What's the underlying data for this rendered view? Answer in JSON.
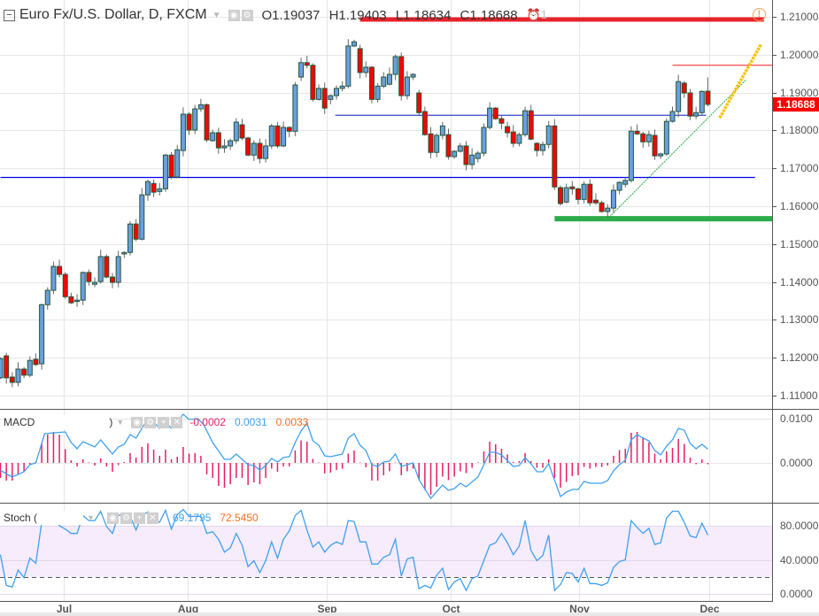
{
  "header": {
    "title": "Euro Fx/U.S. Dollar, D, FXCM",
    "open": "O1.19037",
    "high": "H1.19403",
    "low": "L1.18634",
    "close": "C1.18688",
    "alarm_count": "1",
    "icons": [
      "collapse-icon",
      "dropdown-icon",
      "eye-icon",
      "gear-icon",
      "alarm-icon",
      "warning-icon"
    ]
  },
  "price_tag": "1.18688",
  "macd_legend": {
    "label": "MACD",
    "paren": ")",
    "histogram": "-0.0002",
    "macd": "0.0031",
    "signal": "0.0033"
  },
  "stoch_legend": {
    "label": "Stoch (",
    "k": "69.1795",
    "d": "72.5450"
  },
  "colors": {
    "up": "#6a9fe0",
    "down": "#ff0000",
    "outline": "#24543a",
    "macd_line": "#3fa0f0",
    "histogram": "#e91e63",
    "signal_text": "#ff6d1a",
    "stoch_band": "#f6ecfc"
  },
  "chart_data": {
    "type": "candlestick",
    "title": "Euro Fx/U.S. Dollar, D, FXCM",
    "ylim": [
      1.1067,
      1.2144
    ],
    "price_ticks": [
      "1.21000",
      "1.20000",
      "1.19000",
      "1.18000",
      "1.17000",
      "1.16000",
      "1.15000",
      "1.14000",
      "1.13000",
      "1.12000",
      "1.11000"
    ],
    "x_ticks": [
      {
        "label": "Jul",
        "bar": 10.8
      },
      {
        "label": "Aug",
        "bar": 31.7
      },
      {
        "label": "Sep",
        "bar": 55.4
      },
      {
        "label": "Oct",
        "bar": 76.3
      },
      {
        "label": "Nov",
        "bar": 98.2
      },
      {
        "label": "Dec",
        "bar": 120.2
      }
    ],
    "candles_oc": [
      [
        1.1147,
        1.1198
      ],
      [
        1.1205,
        1.1147
      ],
      [
        1.1149,
        1.1135
      ],
      [
        1.1135,
        1.117
      ],
      [
        1.117,
        1.1154
      ],
      [
        1.1154,
        1.1193
      ],
      [
        1.1196,
        1.1182
      ],
      [
        1.1184,
        1.134
      ],
      [
        1.134,
        1.1378
      ],
      [
        1.1378,
        1.1441
      ],
      [
        1.1441,
        1.142
      ],
      [
        1.142,
        1.1361
      ],
      [
        1.1361,
        1.1345
      ],
      [
        1.135,
        1.1352
      ],
      [
        1.1352,
        1.1425
      ],
      [
        1.1425,
        1.1401
      ],
      [
        1.1394,
        1.1399
      ],
      [
        1.1401,
        1.1467
      ],
      [
        1.1467,
        1.1413
      ],
      [
        1.1413,
        1.1399
      ],
      [
        1.1399,
        1.1467
      ],
      [
        1.1474,
        1.1478
      ],
      [
        1.1478,
        1.1553
      ],
      [
        1.1553,
        1.1513
      ],
      [
        1.1513,
        1.163
      ],
      [
        1.163,
        1.1665
      ],
      [
        1.166,
        1.1637
      ],
      [
        1.1639,
        1.1646
      ],
      [
        1.1646,
        1.1735
      ],
      [
        1.1735,
        1.1677
      ],
      [
        1.1677,
        1.1749
      ],
      [
        1.1747,
        1.1843
      ],
      [
        1.1843,
        1.1801
      ],
      [
        1.1801,
        1.1857
      ],
      [
        1.1857,
        1.1868
      ],
      [
        1.1868,
        1.1775
      ],
      [
        1.1773,
        1.1794
      ],
      [
        1.1794,
        1.1754
      ],
      [
        1.1754,
        1.1759
      ],
      [
        1.1759,
        1.1773
      ],
      [
        1.1773,
        1.1822
      ],
      [
        1.1815,
        1.178
      ],
      [
        1.178,
        1.1735
      ],
      [
        1.1735,
        1.1766
      ],
      [
        1.1766,
        1.1726
      ],
      [
        1.1726,
        1.1759
      ],
      [
        1.1759,
        1.1812
      ],
      [
        1.1812,
        1.1759
      ],
      [
        1.1759,
        1.1808
      ],
      [
        1.1808,
        1.1798
      ],
      [
        1.1798,
        1.192
      ],
      [
        1.1941,
        1.1979
      ],
      [
        1.1979,
        1.1972
      ],
      [
        1.1972,
        1.1882
      ],
      [
        1.1882,
        1.1911
      ],
      [
        1.1911,
        1.1859
      ],
      [
        1.1882,
        1.1892
      ],
      [
        1.1892,
        1.1911
      ],
      [
        1.1911,
        1.1917
      ],
      [
        1.1917,
        1.2023
      ],
      [
        1.2023,
        1.2034
      ],
      [
        1.2016,
        1.1953
      ],
      [
        1.1953,
        1.1967
      ],
      [
        1.1967,
        1.1882
      ],
      [
        1.1882,
        1.1917
      ],
      [
        1.1917,
        1.1941
      ],
      [
        1.1922,
        1.1948
      ],
      [
        1.1948,
        1.1995
      ],
      [
        1.1995,
        1.1892
      ],
      [
        1.1892,
        1.1941
      ],
      [
        1.1941,
        1.1948
      ],
      [
        1.1899,
        1.1847
      ],
      [
        1.185,
        1.1789
      ],
      [
        1.1791,
        1.1742
      ],
      [
        1.1742,
        1.1787
      ],
      [
        1.1787,
        1.1812
      ],
      [
        1.1789,
        1.1731
      ],
      [
        1.1731,
        1.1745
      ],
      [
        1.1745,
        1.1759
      ],
      [
        1.1759,
        1.171
      ],
      [
        1.171,
        1.1735
      ],
      [
        1.1726,
        1.174
      ],
      [
        1.174,
        1.1808
      ],
      [
        1.1808,
        1.1859
      ],
      [
        1.1859,
        1.1831
      ],
      [
        1.1831,
        1.1819
      ],
      [
        1.181,
        1.1794
      ],
      [
        1.1796,
        1.1766
      ],
      [
        1.1766,
        1.1789
      ],
      [
        1.1789,
        1.1852
      ],
      [
        1.1852,
        1.1777
      ],
      [
        1.1766,
        1.1747
      ],
      [
        1.1747,
        1.1763
      ],
      [
        1.1763,
        1.1812
      ],
      [
        1.1812,
        1.1651
      ],
      [
        1.1649,
        1.1607
      ],
      [
        1.1611,
        1.1649
      ],
      [
        1.1651,
        1.1646
      ],
      [
        1.1646,
        1.1618
      ],
      [
        1.1618,
        1.1658
      ],
      [
        1.1658,
        1.1609
      ],
      [
        1.1616,
        1.1609
      ],
      [
        1.1609,
        1.1586
      ],
      [
        1.1586,
        1.1595
      ],
      [
        1.1595,
        1.1642
      ],
      [
        1.1642,
        1.1663
      ],
      [
        1.1658,
        1.1668
      ],
      [
        1.1668,
        1.1798
      ],
      [
        1.1798,
        1.1791
      ],
      [
        1.1791,
        1.177
      ],
      [
        1.177,
        1.1789
      ],
      [
        1.1787,
        1.1733
      ],
      [
        1.1733,
        1.1738
      ],
      [
        1.1738,
        1.1824
      ],
      [
        1.1824,
        1.185
      ],
      [
        1.185,
        1.1929
      ],
      [
        1.1925,
        1.1899
      ],
      [
        1.1899,
        1.1838
      ],
      [
        1.1838,
        1.1847
      ],
      [
        1.1847,
        1.1903
      ],
      [
        1.19037,
        1.18688
      ]
    ],
    "last_candle": {
      "open": 1.19037,
      "high": 1.19403,
      "low": 1.18634,
      "close": 1.18688
    },
    "drawings": [
      {
        "name": "resistance-line-red-thick",
        "price": 1.2093,
        "from_bar": 61,
        "to_bar": 129.5,
        "color": "#e8222b",
        "width": 5
      },
      {
        "name": "resistance-line-red-thin",
        "price": 1.1972,
        "from_bar": 114,
        "to_bar": 131,
        "color": "#ee2222",
        "width": 1
      },
      {
        "name": "horizontal-line-blue-upper",
        "price": 1.184,
        "from_bar": 56.8,
        "to_bar": 119.7,
        "color": "#3344cc",
        "width": 1.3
      },
      {
        "name": "horizontal-line-blue-lower",
        "price": 1.1676,
        "from_bar": 0,
        "to_bar": 128,
        "color": "#0000ee",
        "width": 1.3
      },
      {
        "name": "support-line-green",
        "price": 1.1567,
        "from_bar": 94,
        "to_bar": 131,
        "color": "#2eaa4a",
        "width": 6
      },
      {
        "name": "trend-line-green",
        "from": [
          103,
          1.1567
        ],
        "to": [
          126.5,
          1.1934
        ],
        "color": "#22aa44",
        "width": 1,
        "dash": "2,1"
      },
      {
        "name": "trend-line-yellow",
        "from": [
          122,
          1.1833
        ],
        "to": [
          129,
          1.2027
        ],
        "color": "#ffc107",
        "width": 3.5,
        "dash": "3,1"
      }
    ],
    "macd": {
      "ticks": [
        "0.0100",
        "0.0000"
      ],
      "ylim": [
        -0.009,
        0.012
      ],
      "line": [
        [
          0,
          -0.0017
        ],
        [
          2,
          -0.0032
        ],
        [
          4,
          -0.002
        ],
        [
          5,
          -0.0004
        ],
        [
          6,
          0
        ],
        [
          7.5,
          0.0066
        ],
        [
          11,
          0.007
        ],
        [
          12,
          0.0046
        ],
        [
          13,
          0.0032
        ],
        [
          14,
          0.0048
        ],
        [
          16,
          0.0036
        ],
        [
          17,
          0.0052
        ],
        [
          19,
          0.002
        ],
        [
          20,
          0.0036
        ],
        [
          21,
          0.0042
        ],
        [
          22,
          0.0064
        ],
        [
          23,
          0.0056
        ],
        [
          25,
          0.01
        ],
        [
          26,
          0.0092
        ],
        [
          27,
          0.0078
        ],
        [
          28,
          0.0092
        ],
        [
          29,
          0.0078
        ],
        [
          31,
          0.011
        ],
        [
          32,
          0.0098
        ],
        [
          33.5,
          0.01
        ],
        [
          34.5,
          0.0086
        ],
        [
          36,
          0.0046
        ],
        [
          38,
          0.0008
        ],
        [
          39,
          0.0008
        ],
        [
          40,
          0.002
        ],
        [
          42,
          -0.0004
        ],
        [
          43,
          -0.0006
        ],
        [
          44,
          -0.0016
        ],
        [
          45,
          -0.0006
        ],
        [
          46,
          0.001
        ],
        [
          47,
          0.0002
        ],
        [
          48,
          0.0012
        ],
        [
          49,
          0.0014
        ],
        [
          50,
          0.0046
        ],
        [
          51,
          0.0072
        ],
        [
          52,
          0.009
        ],
        [
          53,
          0.005
        ],
        [
          54,
          0.004
        ],
        [
          55,
          0.0016
        ],
        [
          56,
          0.0014
        ],
        [
          58,
          0.002
        ],
        [
          59,
          0.0056
        ],
        [
          60,
          0.0066
        ],
        [
          61,
          0.004
        ],
        [
          62,
          0.0028
        ],
        [
          63,
          -0.0004
        ],
        [
          64,
          -0.0008
        ],
        [
          65,
          0.0002
        ],
        [
          66,
          0.0004
        ],
        [
          67,
          0.002
        ],
        [
          68,
          -0.0008
        ],
        [
          70,
          0
        ],
        [
          71,
          -0.0038
        ],
        [
          73,
          -0.008
        ],
        [
          75,
          -0.005
        ],
        [
          76,
          -0.0062
        ],
        [
          77,
          -0.0058
        ],
        [
          78,
          -0.0046
        ],
        [
          79,
          -0.0054
        ],
        [
          81,
          -0.0032
        ],
        [
          82,
          -0.0004
        ],
        [
          83,
          0.0024
        ],
        [
          84,
          0.0024
        ],
        [
          85,
          0.0018
        ],
        [
          87,
          -0.0008
        ],
        [
          88,
          -0.0006
        ],
        [
          89,
          0.0012
        ],
        [
          90,
          -0.0002
        ],
        [
          91,
          -0.002
        ],
        [
          92,
          -0.002
        ],
        [
          93,
          -0.0002
        ],
        [
          95,
          -0.0076
        ],
        [
          96,
          -0.0066
        ],
        [
          97,
          -0.006
        ],
        [
          98,
          -0.006
        ],
        [
          99,
          -0.0042
        ],
        [
          100,
          -0.0046
        ],
        [
          102,
          -0.0046
        ],
        [
          103,
          -0.004
        ],
        [
          104,
          -0.0018
        ],
        [
          105,
          -0.0004
        ],
        [
          106,
          0.0006
        ],
        [
          107,
          0.0052
        ],
        [
          108,
          0.0064
        ],
        [
          109,
          0.0056
        ],
        [
          110,
          0.005
        ],
        [
          111,
          0.0028
        ],
        [
          112,
          0.0018
        ],
        [
          113,
          0.0038
        ],
        [
          114,
          0.0052
        ],
        [
          115,
          0.0078
        ],
        [
          116,
          0.0074
        ],
        [
          117,
          0.0044
        ],
        [
          118,
          0.0032
        ],
        [
          119,
          0.0042
        ],
        [
          120,
          0.0031
        ]
      ],
      "histogram": [
        -0.0033,
        -0.0039,
        -0.0039,
        -0.0025,
        -0.0019,
        -0.0002,
        0.0002,
        0.0043,
        0.0063,
        0.0069,
        0.0063,
        0.003,
        0.0005,
        -0.0007,
        0.0007,
        0,
        -0.0005,
        0.0009,
        -0.0007,
        -0.0019,
        -0.0004,
        0.0001,
        0.0021,
        0.0011,
        0.0035,
        0.0043,
        0.0029,
        0.0015,
        0.0029,
        0.0007,
        0.0013,
        0.0035,
        0.002,
        0.0021,
        0.0015,
        -0.0025,
        -0.0033,
        -0.0051,
        -0.0055,
        -0.0047,
        -0.0033,
        -0.0033,
        -0.0049,
        -0.0043,
        -0.0047,
        -0.0033,
        -0.0012,
        -0.0019,
        -0.0007,
        -0.0007,
        0.0027,
        0.005,
        0.0047,
        0.0008,
        0,
        -0.0023,
        -0.0021,
        -0.0015,
        -0.0012,
        0.002,
        0.0027,
        0,
        -0.0009,
        -0.0039,
        -0.0039,
        -0.0027,
        -0.0018,
        0,
        -0.0027,
        -0.0018,
        -0.0012,
        -0.0037,
        -0.006,
        -0.0071,
        -0.0053,
        -0.003,
        -0.0038,
        -0.003,
        -0.0018,
        -0.0022,
        -0.001,
        0,
        0.0025,
        0.0047,
        0.0041,
        0.0031,
        0.0018,
        0.0001,
        0.0003,
        0.0021,
        0.0003,
        -0.001,
        -0.001,
        0.0007,
        -0.0033,
        -0.0055,
        -0.0042,
        -0.0029,
        -0.0027,
        -0.0008,
        -0.0012,
        -0.0008,
        -0.0008,
        -0.0005,
        0.0015,
        0.0028,
        0.0031,
        0.0067,
        0.0069,
        0.0057,
        0.0045,
        0.002,
        0.0007,
        0.0025,
        0.0033,
        0.0053,
        0.0042,
        0.0011,
        -0.0002,
        0.0007,
        -0.0002
      ]
    },
    "stoch": {
      "ticks": [
        "80.0000",
        "40.0000",
        "0.0000"
      ],
      "bands": [
        20,
        80
      ],
      "k": [
        46,
        10,
        8,
        28,
        19,
        42,
        36,
        84,
        92,
        90,
        80,
        76,
        71,
        71,
        92,
        86,
        86,
        97,
        79,
        71,
        92,
        94,
        91,
        75,
        92,
        96,
        86,
        84,
        98,
        76,
        93,
        99,
        91,
        91,
        91,
        71,
        73,
        64,
        49,
        54,
        71,
        57,
        32,
        39,
        25,
        39,
        61,
        42,
        64,
        74,
        92,
        98,
        75,
        55,
        61,
        49,
        57,
        61,
        58,
        86,
        85,
        61,
        61,
        35,
        35,
        43,
        46,
        64,
        21,
        41,
        43,
        6,
        10,
        7,
        22,
        30,
        5,
        14,
        18,
        4,
        18,
        21,
        39,
        57,
        60,
        71,
        60,
        46,
        56,
        86,
        51,
        39,
        45,
        69,
        4,
        11,
        25,
        24,
        14,
        30,
        12,
        12,
        10,
        13,
        31,
        38,
        40,
        86,
        78,
        71,
        77,
        58,
        60,
        89,
        97,
        97,
        84,
        68,
        66,
        83,
        69
      ]
    }
  }
}
